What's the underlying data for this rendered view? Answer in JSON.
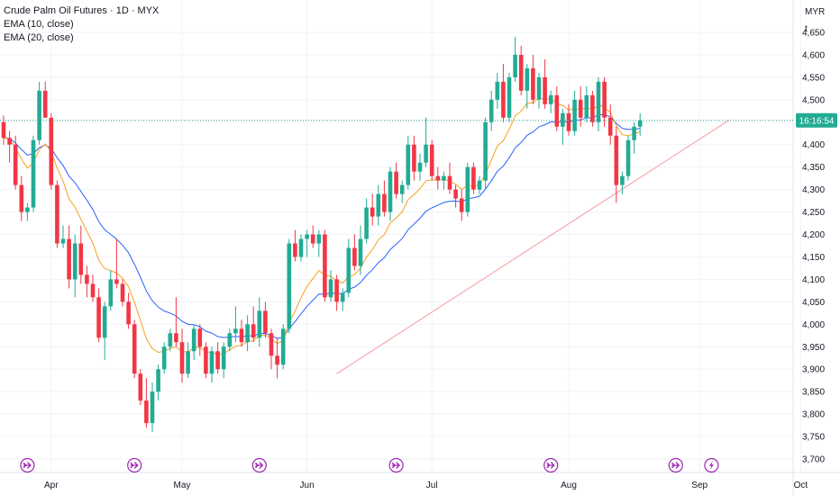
{
  "legend": {
    "symbol": "Crude Palm Oil Futures · 1D · MYX",
    "ema10": "EMA (10, close)",
    "ema20": "EMA (20, close)"
  },
  "price_scale": {
    "currency": "MYR",
    "unit": "t"
  },
  "last_price_label": "16:16:54",
  "colors": {
    "up": "#22ab94",
    "down": "#f23645",
    "ema10": "#f7a21b",
    "ema20": "#2962ff",
    "trendline": "#f7a8ae",
    "last_price": "#22ab94",
    "event_marker": "#9c27b0"
  },
  "events": [
    {
      "date_index": 4,
      "type": "dividend-arrow"
    },
    {
      "date_index": 22,
      "type": "dividend-arrow"
    },
    {
      "date_index": 43,
      "type": "dividend-arrow"
    },
    {
      "date_index": 66,
      "type": "dividend-arrow"
    },
    {
      "date_index": 92,
      "type": "dividend-arrow"
    },
    {
      "date_index": 113,
      "type": "dividend-arrow"
    },
    {
      "date_index": 119,
      "type": "lightning"
    }
  ],
  "chart_data": {
    "type": "candlestick",
    "title": "Crude Palm Oil Futures · 1D · MYX",
    "y_axis": {
      "ticks": [
        3700,
        3750,
        3800,
        3850,
        3900,
        3950,
        4000,
        4050,
        4100,
        4150,
        4200,
        4250,
        4300,
        4350,
        4400,
        4450,
        4500,
        4550,
        4600,
        4650
      ],
      "tick_labels": [
        "3,700",
        "3,750",
        "3,800",
        "3,850",
        "3,900",
        "3,950",
        "4,000",
        "4,050",
        "4,100",
        "4,150",
        "4,200",
        "4,250",
        "4,300",
        "4,350",
        "4,400",
        "4,450",
        "4,500",
        "4,550",
        "4,600",
        "4,650"
      ],
      "range": [
        3690,
        4690
      ]
    },
    "x_axis": {
      "month_labels": [
        {
          "label": "Apr",
          "index": 8
        },
        {
          "label": "May",
          "index": 30
        },
        {
          "label": "Jun",
          "index": 51
        },
        {
          "label": "Jul",
          "index": 72
        },
        {
          "label": "Aug",
          "index": 95
        },
        {
          "label": "Sep",
          "index": 117
        },
        {
          "label": "Oct",
          "index": 134
        }
      ]
    },
    "last_price": 4454,
    "trendline": [
      {
        "index": 56,
        "price": 3890
      },
      {
        "index": 122,
        "price": 4455
      }
    ],
    "candles": [
      [
        4450,
        4465,
        4400,
        4415
      ],
      [
        4415,
        4430,
        4360,
        4400
      ],
      [
        4400,
        4420,
        4300,
        4310
      ],
      [
        4310,
        4330,
        4230,
        4250
      ],
      [
        4250,
        4270,
        4230,
        4260
      ],
      [
        4260,
        4420,
        4250,
        4410
      ],
      [
        4410,
        4540,
        4400,
        4520
      ],
      [
        4520,
        4540,
        4460,
        4460
      ],
      [
        4460,
        4470,
        4300,
        4310
      ],
      [
        4310,
        4320,
        4170,
        4180
      ],
      [
        4180,
        4220,
        4170,
        4190
      ],
      [
        4190,
        4220,
        4080,
        4100
      ],
      [
        4100,
        4200,
        4060,
        4180
      ],
      [
        4180,
        4220,
        4090,
        4110
      ],
      [
        4110,
        4130,
        4060,
        4090
      ],
      [
        4090,
        4110,
        4050,
        4060
      ],
      [
        4060,
        4080,
        3960,
        3970
      ],
      [
        3970,
        4050,
        3920,
        4040
      ],
      [
        4040,
        4120,
        4030,
        4100
      ],
      [
        4100,
        4190,
        4080,
        4090
      ],
      [
        4090,
        4100,
        4040,
        4050
      ],
      [
        4050,
        4070,
        3990,
        4000
      ],
      [
        4000,
        4010,
        3880,
        3890
      ],
      [
        3890,
        3900,
        3820,
        3830
      ],
      [
        3830,
        3880,
        3770,
        3780
      ],
      [
        3780,
        3870,
        3760,
        3850
      ],
      [
        3850,
        3910,
        3830,
        3900
      ],
      [
        3900,
        3960,
        3890,
        3950
      ],
      [
        3950,
        3990,
        3940,
        3980
      ],
      [
        3980,
        4060,
        3950,
        3960
      ],
      [
        3960,
        3990,
        3870,
        3890
      ],
      [
        3890,
        3960,
        3880,
        3940
      ],
      [
        3940,
        4000,
        3920,
        3990
      ],
      [
        3990,
        4000,
        3930,
        3950
      ],
      [
        3950,
        3960,
        3880,
        3890
      ],
      [
        3890,
        3950,
        3870,
        3940
      ],
      [
        3940,
        3960,
        3890,
        3900
      ],
      [
        3900,
        3960,
        3880,
        3950
      ],
      [
        3950,
        3990,
        3940,
        3980
      ],
      [
        3980,
        4040,
        3960,
        3990
      ],
      [
        3990,
        4010,
        3950,
        3960
      ],
      [
        3960,
        4020,
        3940,
        4000
      ],
      [
        4000,
        4040,
        3960,
        3970
      ],
      [
        3970,
        4060,
        3950,
        4030
      ],
      [
        4030,
        4050,
        3970,
        3980
      ],
      [
        3980,
        3990,
        3900,
        3930
      ],
      [
        3930,
        3970,
        3880,
        3910
      ],
      [
        3910,
        4000,
        3900,
        3990
      ],
      [
        3990,
        4190,
        3980,
        4180
      ],
      [
        4180,
        4210,
        4140,
        4150
      ],
      [
        4150,
        4200,
        4140,
        4190
      ],
      [
        4190,
        4210,
        4150,
        4200
      ],
      [
        4200,
        4220,
        4170,
        4180
      ],
      [
        4180,
        4210,
        4150,
        4200
      ],
      [
        4200,
        4210,
        4050,
        4060
      ],
      [
        4060,
        4120,
        4050,
        4100
      ],
      [
        4100,
        4110,
        4030,
        4050
      ],
      [
        4050,
        4080,
        4030,
        4070
      ],
      [
        4070,
        4190,
        4060,
        4170
      ],
      [
        4170,
        4200,
        4120,
        4130
      ],
      [
        4130,
        4220,
        4110,
        4190
      ],
      [
        4190,
        4280,
        4180,
        4260
      ],
      [
        4260,
        4290,
        4220,
        4240
      ],
      [
        4240,
        4310,
        4220,
        4290
      ],
      [
        4290,
        4320,
        4240,
        4250
      ],
      [
        4250,
        4350,
        4230,
        4340
      ],
      [
        4340,
        4360,
        4280,
        4290
      ],
      [
        4290,
        4320,
        4270,
        4310
      ],
      [
        4310,
        4420,
        4300,
        4400
      ],
      [
        4400,
        4420,
        4320,
        4340
      ],
      [
        4340,
        4380,
        4320,
        4360
      ],
      [
        4360,
        4460,
        4350,
        4400
      ],
      [
        4400,
        4410,
        4320,
        4330
      ],
      [
        4330,
        4350,
        4300,
        4320
      ],
      [
        4320,
        4340,
        4300,
        4330
      ],
      [
        4330,
        4360,
        4290,
        4300
      ],
      [
        4300,
        4310,
        4260,
        4280
      ],
      [
        4280,
        4300,
        4230,
        4250
      ],
      [
        4250,
        4360,
        4240,
        4350
      ],
      [
        4350,
        4360,
        4290,
        4300
      ],
      [
        4300,
        4330,
        4290,
        4320
      ],
      [
        4320,
        4460,
        4300,
        4450
      ],
      [
        4450,
        4520,
        4430,
        4500
      ],
      [
        4500,
        4560,
        4480,
        4540
      ],
      [
        4540,
        4580,
        4450,
        4460
      ],
      [
        4460,
        4560,
        4450,
        4550
      ],
      [
        4550,
        4640,
        4540,
        4600
      ],
      [
        4600,
        4620,
        4510,
        4520
      ],
      [
        4520,
        4580,
        4480,
        4570
      ],
      [
        4570,
        4600,
        4490,
        4500
      ],
      [
        4500,
        4560,
        4480,
        4550
      ],
      [
        4550,
        4590,
        4480,
        4490
      ],
      [
        4490,
        4520,
        4470,
        4510
      ],
      [
        4510,
        4530,
        4430,
        4440
      ],
      [
        4440,
        4480,
        4400,
        4470
      ],
      [
        4470,
        4490,
        4420,
        4430
      ],
      [
        4430,
        4520,
        4420,
        4500
      ],
      [
        4500,
        4530,
        4440,
        4460
      ],
      [
        4460,
        4530,
        4450,
        4510
      ],
      [
        4510,
        4520,
        4440,
        4450
      ],
      [
        4450,
        4550,
        4430,
        4540
      ],
      [
        4540,
        4550,
        4440,
        4460
      ],
      [
        4460,
        4490,
        4400,
        4420
      ],
      [
        4420,
        4440,
        4270,
        4310
      ],
      [
        4310,
        4340,
        4290,
        4330
      ],
      [
        4330,
        4420,
        4320,
        4410
      ],
      [
        4410,
        4450,
        4380,
        4440
      ],
      [
        4440,
        4470,
        4420,
        4454
      ]
    ]
  }
}
